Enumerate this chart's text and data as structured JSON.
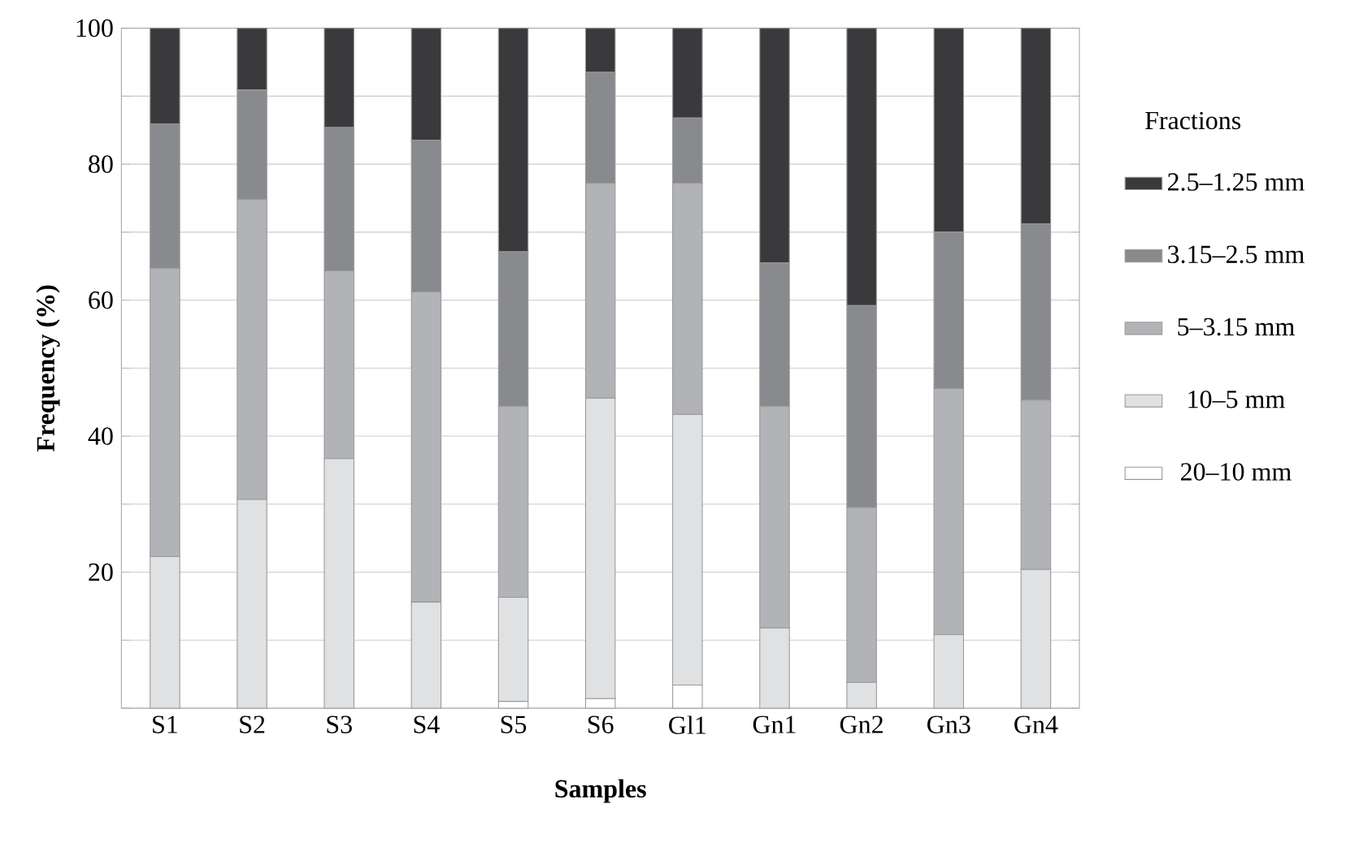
{
  "chart_data": {
    "type": "bar",
    "stacked": true,
    "xlabel": "Samples",
    "ylabel": "Frequency (%)",
    "legend_title": "Fractions",
    "legend": "right",
    "grid": "y",
    "categories": [
      "S1",
      "S2",
      "S3",
      "S4",
      "S5",
      "S6",
      "Gl1",
      "Gn1",
      "Gn2",
      "Gn3",
      "Gn4"
    ],
    "ylim": [
      0,
      100
    ],
    "yticks": [
      {
        "value": 0,
        "label": null
      },
      {
        "value": 10,
        "label": null
      },
      20,
      {
        "value": 30,
        "label": null
      },
      40,
      {
        "value": 50,
        "label": null
      },
      60,
      {
        "value": 70,
        "label": null
      },
      80,
      {
        "value": 90,
        "label": null
      },
      100
    ],
    "series": [
      {
        "name": "20–10 mm",
        "color": "#ffffff",
        "values": [
          0,
          0,
          0,
          0,
          1,
          1.4,
          3.4,
          0,
          0,
          0,
          0
        ]
      },
      {
        "name": "10–5 mm",
        "color": "#e0e1e3",
        "values": [
          22.3,
          30.7,
          36.7,
          15.6,
          15.3,
          44.2,
          39.8,
          11.8,
          3.8,
          10.8,
          20.4
        ]
      },
      {
        "name": "5–3.15 mm",
        "color": "#b2b3b6",
        "values": [
          42.4,
          44.1,
          27.6,
          45.6,
          28.1,
          31.6,
          34,
          32.6,
          25.7,
          36.2,
          24.9
        ]
      },
      {
        "name": "3.15–2.5 mm",
        "color": "#898a8d",
        "values": [
          21.2,
          16.1,
          21.1,
          22.3,
          22.7,
          16.3,
          9.6,
          21.1,
          29.7,
          23,
          25.9
        ]
      },
      {
        "name": "2.5–1.25 mm",
        "color": "#3a3a3c",
        "values": [
          14.1,
          9.1,
          14.6,
          16.5,
          32.9,
          6.5,
          13.2,
          34.5,
          40.8,
          30,
          28.8
        ]
      }
    ]
  }
}
